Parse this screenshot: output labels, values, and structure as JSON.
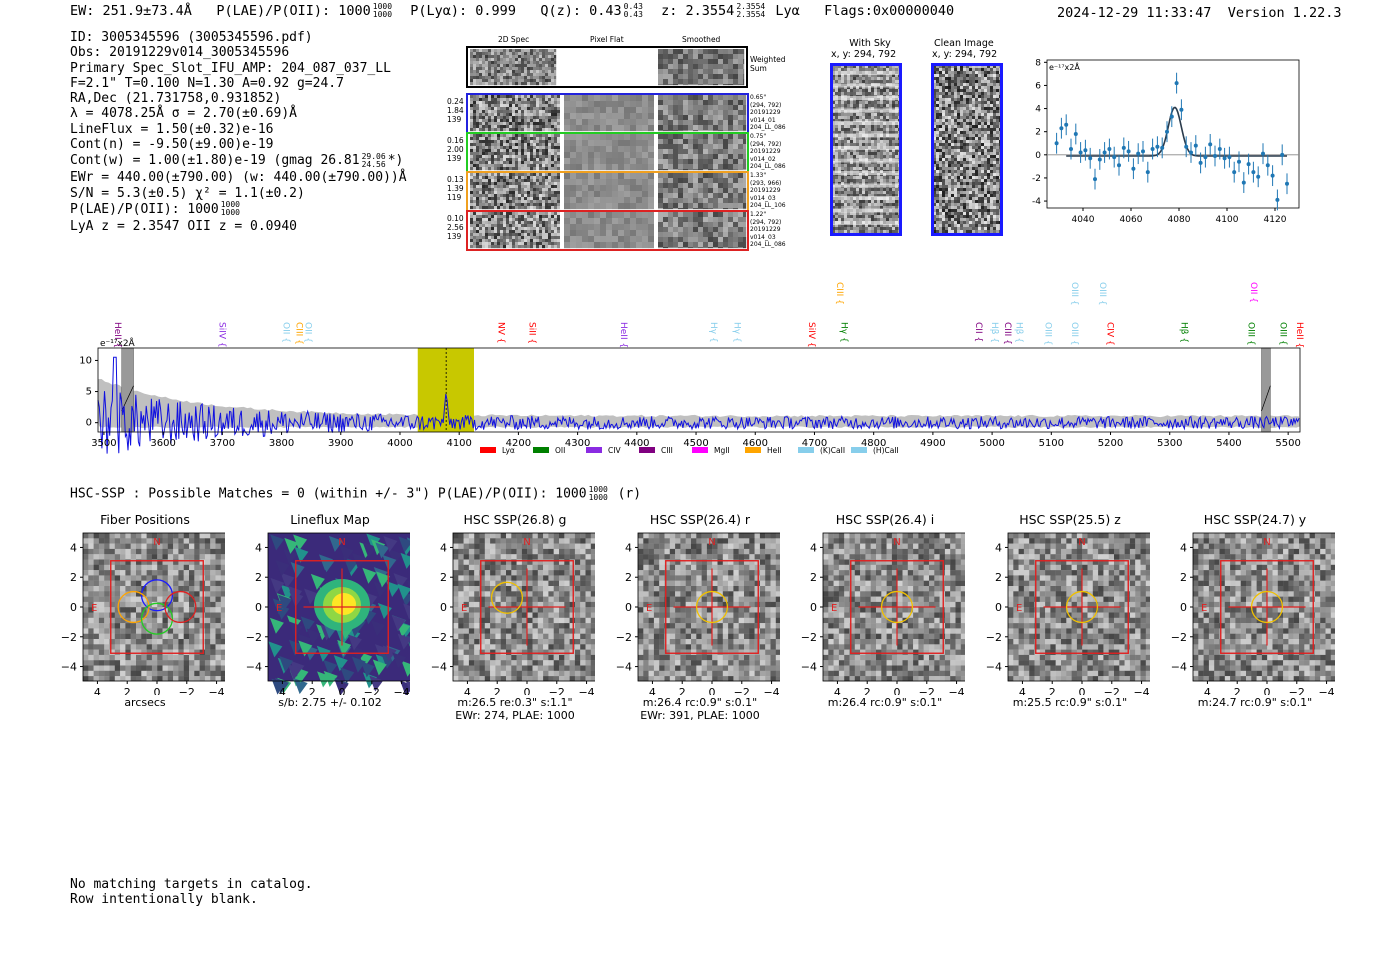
{
  "header": {
    "ew": "EW: 251.9±73.4Å",
    "plae_label": "P(LAE)/P(OII): 1000",
    "plae_hi": "1000",
    "plae_lo": "1000",
    "plya": "P(Lyα): 0.999",
    "qz_label": "Q(z): 0.43",
    "qz_hi": "0.43",
    "qz_lo": "0.43",
    "z_label": "z: 2.3554",
    "z_hi": "2.3554",
    "z_lo": "2.3554",
    "line": "Lyα",
    "flags": "Flags:0x00000040",
    "timestamp": "2024-12-29 11:33:47",
    "version": "Version 1.22.3"
  },
  "info": {
    "id": "ID: 3005345596 (3005345596.pdf)",
    "obs": "Obs: 20191229v014_3005345596",
    "primary": "Primary Spec_Slot_IFU_AMP: 204_087_037_LL",
    "params": "F=2.1\"  T=0.100  N=1.30  A=0.92  g=24.7",
    "radec": "RA,Dec (21.731758,0.931852)",
    "lambda": "λ = 4078.25Å  σ = 2.70(±0.69)Å",
    "lineflux": "LineFlux = 1.50(±0.32)e-16",
    "contn": "Cont(n) = -9.50(±9.00)e-19",
    "contw": "Cont(w) = 1.00(±1.80)e-19 (gmag 26.81",
    "gmag_hi": "29.06",
    "gmag_lo": "24.56",
    "contw_end": "*)",
    "ewr": "EWr = 440.00(±790.00) (w: 440.00(±790.00))Å",
    "sn": "S/N = 5.3(±0.5)  χ² = 1.1(±0.2)",
    "plae": "P(LAE)/P(OII): 1000",
    "plae_hi": "1000",
    "plae_lo": "1000",
    "lyaz": "LyA z = 2.3547  OII z = 0.0940"
  },
  "cutouts": {
    "col_titles": [
      "2D Spec",
      "Pixel Flat",
      "Smoothed"
    ],
    "weighted_label": "Weighted Sum",
    "rows": [
      {
        "color": "#2222dd",
        "left": [
          "0.24",
          "1.84",
          "139"
        ],
        "right": [
          "0.65\"",
          "(294, 792)",
          "20191229",
          "v014_01",
          "204_LL_086"
        ]
      },
      {
        "color": "#22cc22",
        "left": [
          "0.16",
          "2.00",
          "139"
        ],
        "right": [
          "0.75\"",
          "(294, 792)",
          "20191229",
          "v014_02",
          "204_LL_086"
        ]
      },
      {
        "color": "#f0a020",
        "left": [
          "0.13",
          "1.39",
          "119"
        ],
        "right": [
          "1.33\"",
          "(293, 966)",
          "20191229",
          "v014_03",
          "204_LL_106"
        ]
      },
      {
        "color": "#dd2222",
        "left": [
          "0.10",
          "2.56",
          "139"
        ],
        "right": [
          "1.22\"",
          "(294, 792)",
          "20191229",
          "v014_03",
          "204_LL_086"
        ]
      }
    ],
    "with_sky_title": "With Sky",
    "with_sky_xy": "x, y: 294, 792",
    "clean_title": "Clean Image",
    "clean_xy": "x, y: 294, 792"
  },
  "chart_data": [
    {
      "name": "line-fit-inset",
      "type": "scatter",
      "ylabel": "e⁻¹⁷x2Å",
      "xlim": [
        4025,
        4130
      ],
      "ylim": [
        -4.6,
        8.2
      ],
      "xticks": [
        4040,
        4060,
        4080,
        4100,
        4120
      ],
      "yticks": [
        -4,
        -2,
        0,
        2,
        4,
        6,
        8
      ],
      "x": [
        4029,
        4031,
        4033,
        4035,
        4037,
        4039,
        4041,
        4043,
        4045,
        4047,
        4049,
        4051,
        4053,
        4055,
        4057,
        4059,
        4061,
        4063,
        4065,
        4067,
        4069,
        4071,
        4073,
        4075,
        4077,
        4079,
        4081,
        4083,
        4085,
        4087,
        4089,
        4091,
        4093,
        4095,
        4097,
        4099,
        4101,
        4103,
        4105,
        4107,
        4109,
        4111,
        4113,
        4115,
        4117,
        4119,
        4121,
        4123,
        4125
      ],
      "y": [
        1.0,
        2.3,
        2.6,
        0.5,
        1.8,
        0.2,
        0.4,
        -0.3,
        -2.1,
        -0.4,
        0.2,
        0.5,
        -0.2,
        -0.9,
        0.6,
        0.3,
        -1.2,
        0.1,
        0.3,
        -1.5,
        0.5,
        0.7,
        0.6,
        2.0,
        3.3,
        6.2,
        3.9,
        0.7,
        0.2,
        0.8,
        -0.7,
        -0.2,
        0.9,
        -0.1,
        0.5,
        -0.3,
        -0.2,
        -1.5,
        -0.6,
        -2.4,
        -0.8,
        -1.5,
        -1.9,
        0.1,
        -0.9,
        -1.8,
        -3.9,
        0.0,
        -2.5
      ],
      "yerr": 0.9,
      "fit": {
        "center": 4078.25,
        "sigma": 2.7,
        "amplitude": 4.2,
        "baseline": -0.1,
        "range": [
          4033,
          4125
        ]
      }
    },
    {
      "name": "full-spectrum",
      "type": "line",
      "title": "",
      "ylabel": "e⁻¹⁷x2Å",
      "xlim": [
        3490,
        5520
      ],
      "ylim": [
        -1.5,
        12
      ],
      "xticks": [
        3500,
        3600,
        3700,
        3800,
        3900,
        4000,
        4100,
        4200,
        4300,
        4400,
        4500,
        4600,
        4700,
        4800,
        4900,
        5000,
        5100,
        5200,
        5300,
        5400,
        5500
      ],
      "yticks": [
        0,
        5,
        10
      ],
      "highlight": [
        4030,
        4125
      ],
      "peak": 4078,
      "masked": [
        [
          3530,
          3550
        ],
        [
          5455,
          5470
        ]
      ],
      "legend": [
        "Lyα",
        "OII",
        "CIV",
        "CIII",
        "MgII",
        "HeII",
        "(K)CaII",
        "(H)CaII"
      ],
      "legend_colors": [
        "#ff0000",
        "#008000",
        "#8a2be2",
        "#800080",
        "#ff00ff",
        "#ffa500",
        "#87ceeb",
        "#87ceeb"
      ],
      "line_labels": [
        {
          "label": "HeII",
          "x": 3514,
          "row": 1,
          "color": "#800080"
        },
        {
          "label": "SiIV",
          "x": 3690,
          "row": 1,
          "color": "#8a2be2"
        },
        {
          "label": "OII",
          "x": 3798,
          "row": 1,
          "color": "#87ceeb"
        },
        {
          "label": "CIII",
          "x": 3820,
          "row": 1,
          "color": "#ffa500"
        },
        {
          "label": "OII",
          "x": 3835,
          "row": 1,
          "color": "#87ceeb"
        },
        {
          "label": "NV",
          "x": 4161,
          "row": 1,
          "color": "#ff0000"
        },
        {
          "label": "SiII",
          "x": 4214,
          "row": 1,
          "color": "#ff0000"
        },
        {
          "label": "HeII",
          "x": 4368,
          "row": 1,
          "color": "#8a2be2"
        },
        {
          "label": "Hγ",
          "x": 4520,
          "row": 1,
          "color": "#87ceeb"
        },
        {
          "label": "Hγ",
          "x": 4560,
          "row": 1,
          "color": "#87ceeb"
        },
        {
          "label": "SiIV",
          "x": 4686,
          "row": 1,
          "color": "#ff0000"
        },
        {
          "label": "CIII",
          "x": 4733,
          "row": 3,
          "color": "#ffa500"
        },
        {
          "label": "Hγ",
          "x": 4741,
          "row": 1,
          "color": "#008000"
        },
        {
          "label": "CII",
          "x": 4968,
          "row": 1,
          "color": "#800080"
        },
        {
          "label": "Hβ",
          "x": 4995,
          "row": 1,
          "color": "#87ceeb"
        },
        {
          "label": "CIII",
          "x": 5017,
          "row": 1,
          "color": "#800080"
        },
        {
          "label": "Hβ",
          "x": 5036,
          "row": 1,
          "color": "#87ceeb"
        },
        {
          "label": "OIII",
          "x": 5085,
          "row": 1,
          "color": "#87ceeb"
        },
        {
          "label": "OIII",
          "x": 5130,
          "row": 1,
          "color": "#87ceeb"
        },
        {
          "label": "OIII",
          "x": 5130,
          "row": 3,
          "color": "#87ceeb"
        },
        {
          "label": "OIII",
          "x": 5177,
          "row": 3,
          "color": "#87ceeb"
        },
        {
          "label": "CIV",
          "x": 5190,
          "row": 1,
          "color": "#ff0000"
        },
        {
          "label": "Hβ",
          "x": 5315,
          "row": 1,
          "color": "#008000"
        },
        {
          "label": "OIII",
          "x": 5428,
          "row": 1,
          "color": "#008000"
        },
        {
          "label": "OII",
          "x": 5432,
          "row": 3,
          "color": "#ff00ff"
        },
        {
          "label": "OIII",
          "x": 5482,
          "row": 1,
          "color": "#008000"
        },
        {
          "label": "HeII",
          "x": 5510,
          "row": 1,
          "color": "#ff0000"
        }
      ]
    }
  ],
  "hsc": {
    "title": "HSC-SSP : Possible Matches = 0 (within +/- 3\")  P(LAE)/P(OII): 1000",
    "frac_hi": "1000",
    "frac_lo": "1000",
    "suffix": "(r)",
    "axis_ticks": [
      "4",
      "2",
      "0",
      "−2",
      "−4"
    ],
    "north": "N",
    "east": "E",
    "panels": [
      {
        "title": "Fiber Positions",
        "caption": [
          "arcsecs"
        ],
        "kind": "fibers"
      },
      {
        "title": "Lineflux Map",
        "caption": [
          "s/b: 2.75 +/- 0.102"
        ],
        "kind": "flux"
      },
      {
        "title": "HSC SSP(26.8) g",
        "caption": [
          "m:26.5  re:0.3\"  s:1.1\"",
          "EWr: 274, PLAE: 1000"
        ],
        "kind": "img"
      },
      {
        "title": "HSC SSP(26.4) r",
        "caption": [
          "m:26.4 rc:0.9\"  s:0.1\"",
          "EWr: 391, PLAE: 1000"
        ],
        "kind": "img"
      },
      {
        "title": "HSC SSP(26.4) i",
        "caption": [
          "m:26.4 rc:0.9\"  s:0.1\""
        ],
        "kind": "img"
      },
      {
        "title": "HSC SSP(25.5) z",
        "caption": [
          "m:25.5 rc:0.9\"  s:0.1\""
        ],
        "kind": "img"
      },
      {
        "title": "HSC SSP(24.7) y",
        "caption": [
          "m:24.7 rc:0.9\"  s:0.1\""
        ],
        "kind": "img"
      }
    ]
  },
  "footer": {
    "line1": "No matching targets in catalog.",
    "line2": "Row intentionally blank."
  }
}
